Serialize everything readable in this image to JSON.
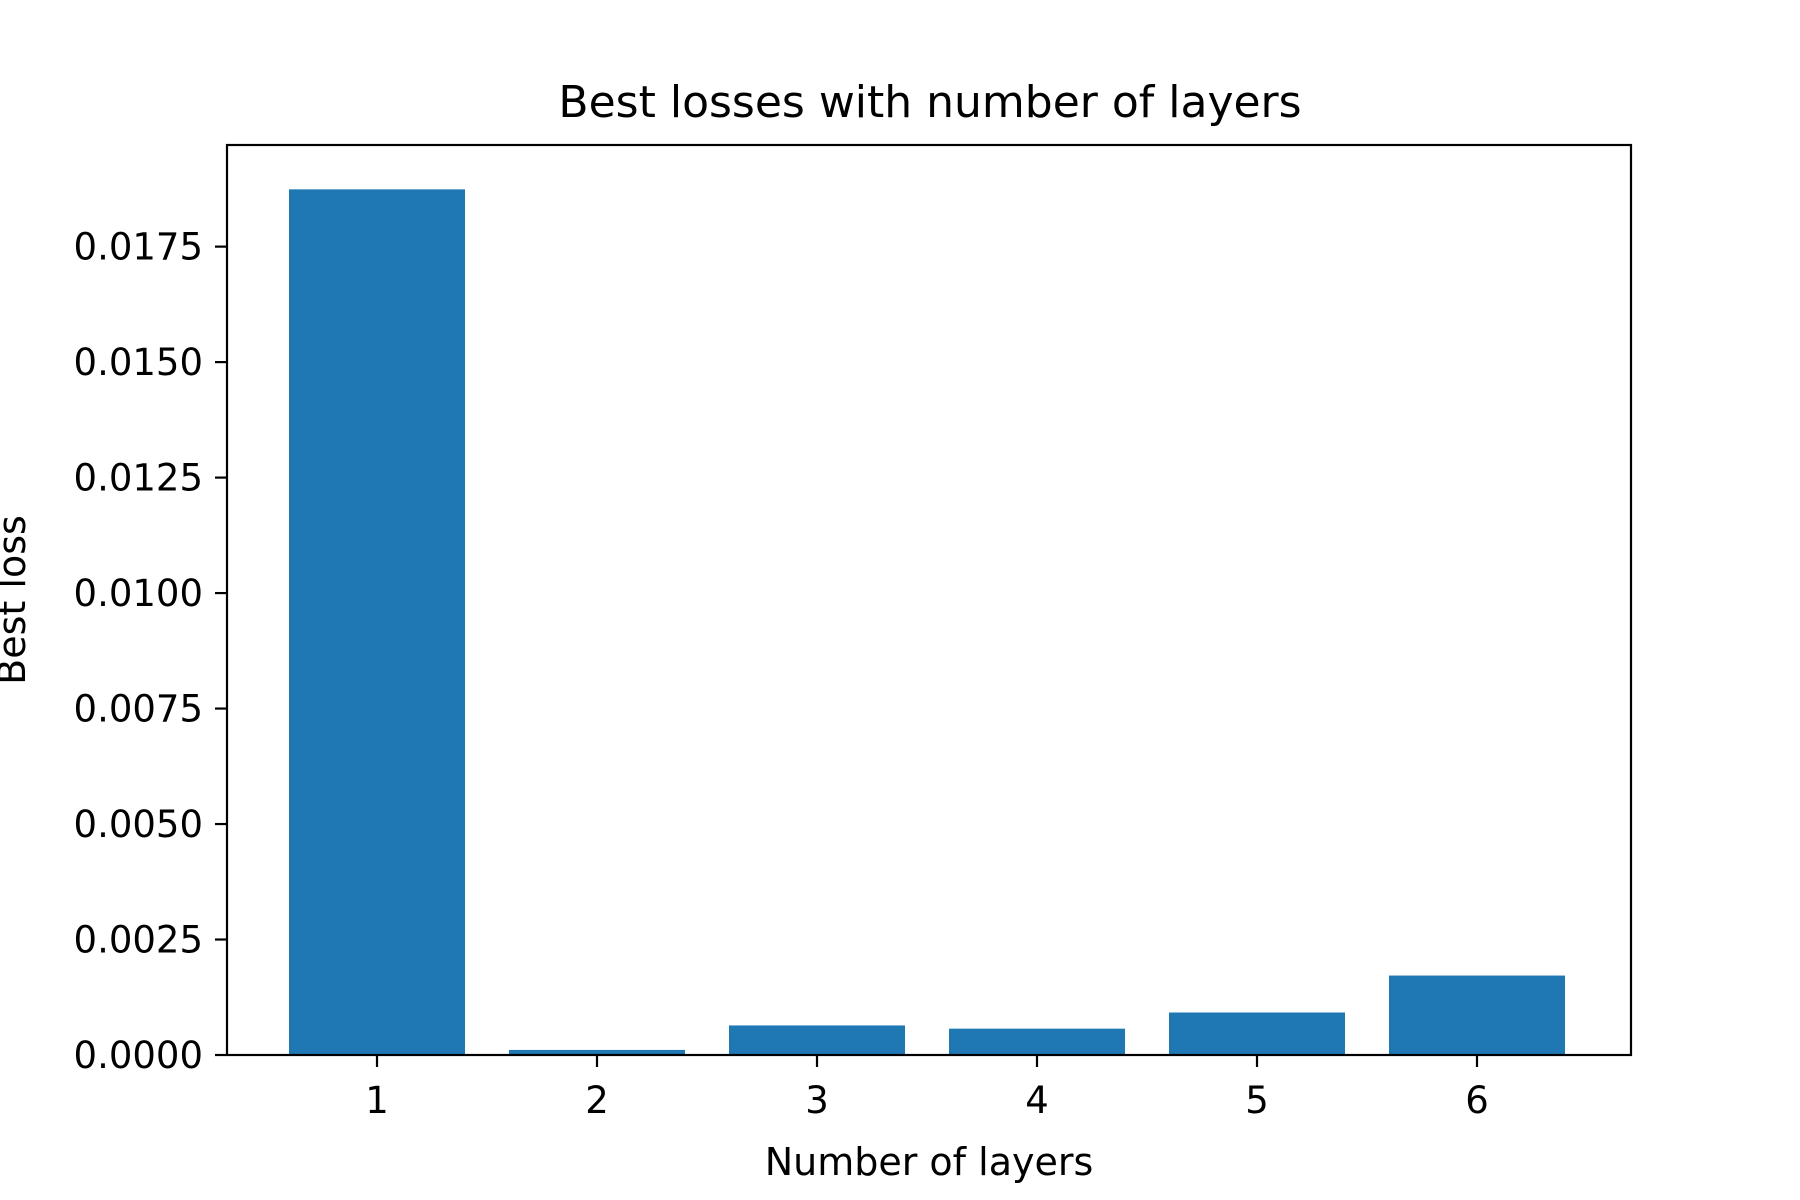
{
  "chart_data": {
    "type": "bar",
    "title": "Best losses with number of layers",
    "xlabel": "Number of layers",
    "ylabel": "Best loss",
    "categories": [
      "1",
      "2",
      "3",
      "4",
      "5",
      "6"
    ],
    "values": [
      0.01874,
      0.00011,
      0.00064,
      0.00057,
      0.00092,
      0.00172
    ],
    "ylim": [
      0,
      0.0197
    ],
    "yticks": [
      "0.0000",
      "0.0025",
      "0.0050",
      "0.0075",
      "0.0100",
      "0.0125",
      "0.0150",
      "0.0175"
    ],
    "ytick_values": [
      0,
      0.0025,
      0.005,
      0.0075,
      0.01,
      0.0125,
      0.015,
      0.0175
    ],
    "grid": false,
    "legend": "none",
    "bar_color": "#1f77b4"
  }
}
